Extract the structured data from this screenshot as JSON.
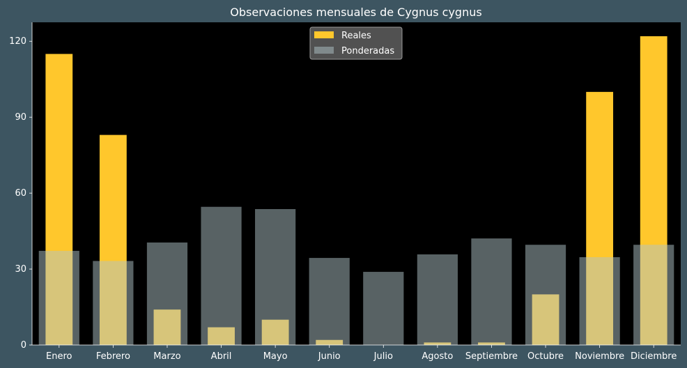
{
  "chart_data": {
    "type": "bar",
    "title": "Observaciones mensuales de Cygnus cygnus",
    "xlabel": "",
    "ylabel": "",
    "categories": [
      "Enero",
      "Febrero",
      "Marzo",
      "Abril",
      "Mayo",
      "Junio",
      "Julio",
      "Agosto",
      "Septiembre",
      "Octubre",
      "Noviembre",
      "Diciembre"
    ],
    "series": [
      {
        "name": "Reales",
        "color": "#ffc72c",
        "values": [
          115,
          83,
          14,
          7,
          10,
          2,
          0,
          1,
          1,
          20,
          100,
          122
        ]
      },
      {
        "name": "Ponderadas",
        "color": "#b0c4c8",
        "opacity": 0.5,
        "values": [
          37.2,
          33.2,
          40.5,
          54.6,
          53.7,
          34.4,
          28.9,
          35.8,
          42.1,
          39.6,
          34.7,
          39.6
        ]
      }
    ],
    "ylim": [
      0,
      127.5
    ],
    "yticks": [
      0,
      30,
      60,
      90,
      120
    ],
    "grid": false,
    "legend": "top-center",
    "plot_background": "#000000",
    "figure_background": "#3d5561"
  }
}
